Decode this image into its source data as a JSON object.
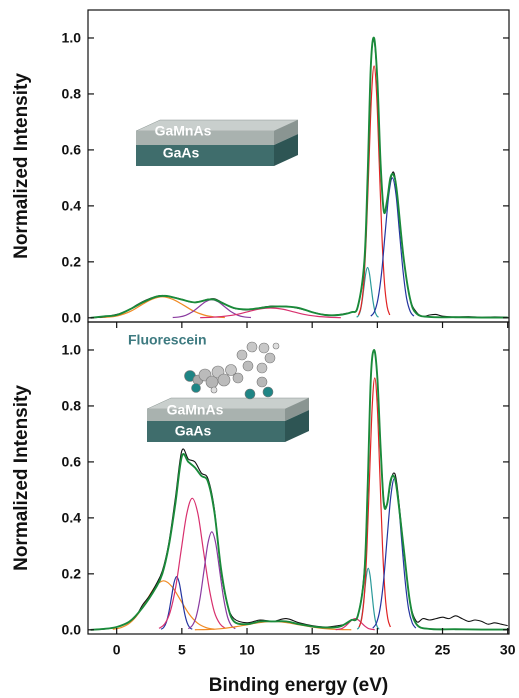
{
  "chart_data": [
    {
      "type": "line",
      "ylabel": "Normalized Intensity",
      "xlim": [
        -2.2,
        30.1
      ],
      "ylim": [
        -0.015,
        1.1
      ],
      "yticks": [
        {
          "value": 0,
          "label": "0.0"
        },
        0.2,
        0.4,
        0.6,
        0.8,
        {
          "value": 1,
          "label": "1.0"
        }
      ],
      "annotations": [
        "GaMnAs",
        "GaAs"
      ],
      "series": [
        {
          "color": "#f08a24",
          "x": [
            -1.3,
            -0.5,
            0.3,
            1.1,
            1.9,
            2.7,
            3.5,
            4.3,
            5.1,
            5.9,
            6.7,
            7.5,
            8.3
          ],
          "values": [
            0.001,
            0.003,
            0.01,
            0.024,
            0.046,
            0.066,
            0.075,
            0.066,
            0.046,
            0.024,
            0.01,
            0.003,
            0.001
          ]
        },
        {
          "color": "#8a3aa0",
          "x": [
            4.3,
            4.8,
            5.3,
            5.8,
            6.3,
            6.8,
            7.3,
            7.8,
            8.3,
            8.8,
            9.3,
            9.8,
            10.3
          ],
          "values": [
            0.001,
            0.003,
            0.009,
            0.021,
            0.039,
            0.057,
            0.065,
            0.057,
            0.039,
            0.021,
            0.009,
            0.003,
            0.001
          ]
        },
        {
          "color": "#d8306e",
          "x": [
            6.4,
            7.3,
            8.2,
            9.1,
            10,
            10.9,
            11.8,
            12.7,
            13.6,
            14.5,
            15.4,
            16.3,
            17.2
          ],
          "values": [
            0.0004,
            0.002,
            0.005,
            0.011,
            0.021,
            0.031,
            0.035,
            0.031,
            0.021,
            0.011,
            0.005,
            0.002,
            0.0004
          ]
        },
        {
          "color": "#2a9a9a",
          "x": [
            18.41,
            18.55,
            18.69,
            18.83,
            18.97,
            19.11,
            19.25,
            19.39,
            19.53,
            19.67,
            19.81,
            19.95,
            20.09
          ],
          "values": [
            0.002,
            0.008,
            0.024,
            0.059,
            0.109,
            0.159,
            0.18,
            0.159,
            0.109,
            0.059,
            0.024,
            0.008,
            0.002
          ]
        },
        {
          "color": "#e02424",
          "x": [
            18.55,
            18.75,
            18.95,
            19.15,
            19.35,
            19.55,
            19.75,
            19.95,
            20.15,
            20.35,
            20.55,
            20.75,
            20.95
          ],
          "values": [
            0.01,
            0.04,
            0.122,
            0.293,
            0.546,
            0.794,
            0.9,
            0.794,
            0.546,
            0.293,
            0.122,
            0.04,
            0.01
          ]
        },
        {
          "color": "#2434a0",
          "x": [
            19.5,
            19.78,
            20.05,
            20.33,
            20.6,
            20.88,
            21.15,
            21.43,
            21.7,
            21.98,
            22.25,
            22.53,
            22.8
          ],
          "values": [
            0.006,
            0.022,
            0.068,
            0.163,
            0.304,
            0.441,
            0.5,
            0.441,
            0.304,
            0.163,
            0.068,
            0.022,
            0.006
          ]
        },
        {
          "color": "#111111",
          "x": [
            -2,
            -1,
            0,
            0.5,
            1,
            1.5,
            2,
            2.5,
            3,
            3.5,
            4,
            4.5,
            5,
            5.5,
            6,
            6.5,
            7,
            7.5,
            8,
            8.5,
            9,
            9.5,
            10,
            10.5,
            11,
            11.5,
            12,
            12.5,
            13,
            13.5,
            14,
            14.5,
            15,
            15.5,
            16,
            16.5,
            17,
            17.5,
            18,
            18.5,
            19,
            19.25,
            19.5,
            19.75,
            20,
            20.25,
            20.5,
            20.75,
            21,
            21.25,
            21.5,
            22,
            22.5,
            23,
            23.5,
            24,
            24.5,
            25,
            26,
            27,
            28,
            29,
            30
          ],
          "values": [
            0.0,
            0.003,
            0.012,
            0.02,
            0.03,
            0.045,
            0.058,
            0.068,
            0.076,
            0.08,
            0.076,
            0.072,
            0.066,
            0.058,
            0.056,
            0.06,
            0.066,
            0.068,
            0.057,
            0.045,
            0.034,
            0.03,
            0.028,
            0.031,
            0.036,
            0.04,
            0.042,
            0.04,
            0.041,
            0.038,
            0.033,
            0.027,
            0.02,
            0.015,
            0.011,
            0.009,
            0.011,
            0.015,
            0.02,
            0.04,
            0.19,
            0.5,
            0.9,
            0.99,
            0.84,
            0.55,
            0.38,
            0.42,
            0.49,
            0.52,
            0.45,
            0.22,
            0.07,
            0.02,
            0.005,
            0.01,
            0.012,
            0.006,
            0.003,
            0.004,
            0.002,
            0.003,
            0.002
          ]
        },
        {
          "color": "#1a8a3a",
          "x": [
            -2,
            -1,
            0,
            1,
            2,
            3,
            3.5,
            4,
            5,
            6,
            7,
            7.5,
            8,
            9,
            10,
            11,
            12,
            13,
            14,
            15,
            16,
            17,
            18,
            18.5,
            19,
            19.25,
            19.5,
            19.75,
            20,
            20.25,
            20.5,
            20.75,
            21,
            21.25,
            21.5,
            22,
            22.5,
            23,
            24,
            26,
            28,
            30
          ],
          "values": [
            0.0,
            0.005,
            0.01,
            0.03,
            0.055,
            0.075,
            0.078,
            0.077,
            0.065,
            0.055,
            0.065,
            0.065,
            0.055,
            0.035,
            0.03,
            0.035,
            0.04,
            0.04,
            0.035,
            0.02,
            0.01,
            0.01,
            0.02,
            0.04,
            0.2,
            0.5,
            0.9,
            1.0,
            0.85,
            0.55,
            0.38,
            0.42,
            0.5,
            0.51,
            0.45,
            0.22,
            0.07,
            0.015,
            0.003,
            0.002,
            0.001,
            0.001
          ]
        }
      ]
    },
    {
      "type": "line",
      "ylabel": "Normalized Intensity",
      "xlabel": "Binding energy (eV)",
      "xlim": [
        -2.2,
        30.1
      ],
      "ylim": [
        -0.015,
        1.1
      ],
      "xticks": [
        0,
        5,
        10,
        15,
        20,
        25,
        30
      ],
      "yticks": [
        {
          "value": 0,
          "label": "0.0"
        },
        0.2,
        0.4,
        0.6,
        0.8,
        {
          "value": 1,
          "label": "1.0"
        }
      ],
      "annotations": [
        "Fluorescein",
        "GaMnAs",
        "GaAs"
      ],
      "series": [
        {
          "color": "#f08a24",
          "x": [
            -0.3,
            0.35,
            1,
            1.65,
            2.3,
            2.95,
            3.6,
            4.25,
            4.9,
            5.55,
            6.2,
            6.85,
            7.5
          ],
          "values": [
            0.002,
            0.008,
            0.024,
            0.057,
            0.106,
            0.154,
            0.175,
            0.154,
            0.106,
            0.057,
            0.024,
            0.008,
            0.002
          ]
        },
        {
          "color": "#2434a0",
          "x": [
            3.4,
            3.6,
            3.8,
            4.0,
            4.2,
            4.4,
            4.6,
            4.8,
            5.0,
            5.2,
            5.4,
            5.6,
            5.8
          ],
          "values": [
            0.002,
            0.008,
            0.026,
            0.062,
            0.115,
            0.168,
            0.19,
            0.168,
            0.115,
            0.062,
            0.026,
            0.008,
            0.002
          ]
        },
        {
          "color": "#d8306e",
          "x": [
            3.25,
            3.68,
            4.1,
            4.53,
            4.95,
            5.38,
            5.8,
            6.23,
            6.65,
            7.08,
            7.5,
            7.93,
            8.35
          ],
          "values": [
            0.005,
            0.021,
            0.063,
            0.153,
            0.285,
            0.415,
            0.47,
            0.415,
            0.285,
            0.153,
            0.063,
            0.021,
            0.005
          ]
        },
        {
          "color": "#8a3aa0",
          "x": [
            5.5,
            5.8,
            6.1,
            6.4,
            6.7,
            7.0,
            7.3,
            7.6,
            7.9,
            8.2,
            8.5,
            8.8,
            9.1
          ],
          "values": [
            0.004,
            0.015,
            0.047,
            0.114,
            0.212,
            0.309,
            0.35,
            0.309,
            0.212,
            0.114,
            0.047,
            0.015,
            0.004
          ]
        },
        {
          "color": "#f08a24",
          "x": [
            6,
            7,
            8,
            9,
            10,
            11,
            12,
            13,
            14,
            15,
            16,
            17,
            18
          ],
          "values": [
            0.0003,
            0.001,
            0.004,
            0.01,
            0.018,
            0.026,
            0.03,
            0.026,
            0.018,
            0.01,
            0.004,
            0.001,
            0.0003
          ]
        },
        {
          "color": "#d8306e",
          "x": [
            16.8,
            17.05,
            17.3,
            17.55,
            17.8,
            18.05,
            18.3,
            18.55,
            18.8,
            19.05,
            19.3,
            19.55,
            19.8
          ],
          "values": [
            0.0004,
            0.002,
            0.005,
            0.013,
            0.024,
            0.035,
            0.04,
            0.035,
            0.024,
            0.013,
            0.005,
            0.002,
            0.0004
          ]
        },
        {
          "color": "#2a9a9a",
          "x": [
            18.46,
            18.6,
            18.74,
            18.88,
            19.02,
            19.16,
            19.3,
            19.44,
            19.58,
            19.72,
            19.86,
            20,
            20.14
          ],
          "values": [
            0.002,
            0.01,
            0.03,
            0.072,
            0.134,
            0.194,
            0.22,
            0.194,
            0.134,
            0.072,
            0.03,
            0.01,
            0.002
          ]
        },
        {
          "color": "#e02424",
          "x": [
            18.6,
            18.8,
            19.0,
            19.2,
            19.4,
            19.6,
            19.8,
            20,
            20.2,
            20.4,
            20.6,
            20.8,
            21
          ],
          "values": [
            0.01,
            0.04,
            0.122,
            0.293,
            0.546,
            0.794,
            0.9,
            0.794,
            0.546,
            0.293,
            0.122,
            0.04,
            0.01
          ]
        },
        {
          "color": "#2434a0",
          "x": [
            19.65,
            19.93,
            20.2,
            20.48,
            20.75,
            21.03,
            21.3,
            21.58,
            21.85,
            22.13,
            22.4,
            22.68,
            22.95
          ],
          "values": [
            0.006,
            0.024,
            0.073,
            0.176,
            0.328,
            0.476,
            0.54,
            0.476,
            0.328,
            0.176,
            0.073,
            0.024,
            0.006
          ]
        },
        {
          "color": "#111111",
          "x": [
            -2,
            -1,
            0,
            1,
            1.5,
            2,
            2.5,
            3,
            3.5,
            4,
            4.5,
            5,
            5.5,
            6,
            6.5,
            7,
            7.5,
            8,
            8.5,
            9,
            10,
            11,
            12,
            13,
            14,
            15,
            16,
            17,
            17.5,
            18,
            18.5,
            19,
            19.25,
            19.5,
            19.75,
            20,
            20.25,
            20.5,
            20.75,
            21,
            21.25,
            21.5,
            22,
            22.5,
            23,
            23.5,
            24,
            24.5,
            25,
            25.5,
            26,
            26.5,
            27,
            27.5,
            28,
            28.5,
            29,
            29.5,
            30
          ],
          "values": [
            0.0,
            0.002,
            0.01,
            0.03,
            0.05,
            0.09,
            0.12,
            0.16,
            0.21,
            0.31,
            0.47,
            0.64,
            0.61,
            0.6,
            0.56,
            0.54,
            0.43,
            0.21,
            0.09,
            0.04,
            0.025,
            0.035,
            0.03,
            0.04,
            0.025,
            0.015,
            0.01,
            0.015,
            0.02,
            0.035,
            0.05,
            0.21,
            0.5,
            0.9,
            1.0,
            0.9,
            0.65,
            0.46,
            0.45,
            0.52,
            0.56,
            0.52,
            0.3,
            0.1,
            0.03,
            0.04,
            0.035,
            0.04,
            0.045,
            0.04,
            0.05,
            0.04,
            0.03,
            0.035,
            0.03,
            0.02,
            0.025,
            0.02,
            0.015
          ]
        },
        {
          "color": "#1a8a3a",
          "x": [
            -2,
            -1,
            0,
            1,
            2,
            3,
            3.5,
            4,
            4.5,
            5,
            5.5,
            6,
            6.5,
            7,
            7.5,
            8,
            8.5,
            9,
            10,
            11,
            12,
            13,
            14,
            15,
            16,
            17,
            17.5,
            18,
            18.5,
            19,
            19.25,
            19.5,
            19.75,
            20,
            20.25,
            20.5,
            20.75,
            21,
            21.25,
            21.5,
            22,
            22.5,
            23,
            24,
            26,
            28,
            30
          ],
          "values": [
            0.0,
            0.003,
            0.01,
            0.03,
            0.08,
            0.15,
            0.2,
            0.3,
            0.45,
            0.62,
            0.6,
            0.58,
            0.55,
            0.53,
            0.42,
            0.22,
            0.09,
            0.03,
            0.02,
            0.03,
            0.03,
            0.03,
            0.02,
            0.012,
            0.008,
            0.01,
            0.02,
            0.035,
            0.05,
            0.2,
            0.5,
            0.9,
            1.0,
            0.9,
            0.65,
            0.45,
            0.45,
            0.53,
            0.55,
            0.5,
            0.3,
            0.1,
            0.02,
            0.003,
            0.002,
            0.001,
            0.001
          ]
        }
      ]
    }
  ]
}
